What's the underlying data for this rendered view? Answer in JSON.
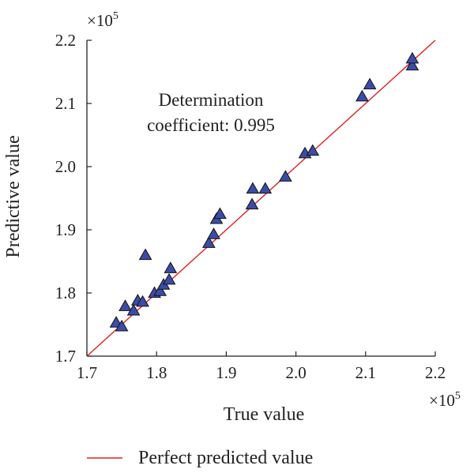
{
  "chart_data": {
    "type": "scatter",
    "xlabel": "True value",
    "ylabel": "Predictive value",
    "xlim": [
      1.7,
      2.2
    ],
    "ylim": [
      1.7,
      2.2
    ],
    "x_ticks": [
      "1.7",
      "1.8",
      "1.9",
      "2.0",
      "2.1",
      "2.2"
    ],
    "y_ticks": [
      "1.7",
      "1.8",
      "1.9",
      "2.0",
      "2.1",
      "2.2"
    ],
    "x_multiplier": {
      "base": "×10",
      "exp": "5"
    },
    "y_multiplier": {
      "base": "×10",
      "exp": "5"
    },
    "annotation": {
      "line1": "Determination",
      "line2": "coefficient: 0.995"
    },
    "legend": {
      "label": "Perfect predicted value",
      "position": "bottom"
    },
    "grid": false,
    "line_color": "#e02020",
    "marker_color": "#3b4ca8",
    "reference_line": {
      "name": "Perfect predicted value",
      "x": [
        1.7,
        2.2
      ],
      "y": [
        1.7,
        2.2
      ]
    },
    "points": [
      {
        "x": 1.742,
        "y": 1.753
      },
      {
        "x": 1.75,
        "y": 1.747
      },
      {
        "x": 1.755,
        "y": 1.779
      },
      {
        "x": 1.767,
        "y": 1.772
      },
      {
        "x": 1.773,
        "y": 1.788
      },
      {
        "x": 1.78,
        "y": 1.786
      },
      {
        "x": 1.784,
        "y": 1.86
      },
      {
        "x": 1.797,
        "y": 1.8
      },
      {
        "x": 1.805,
        "y": 1.803
      },
      {
        "x": 1.81,
        "y": 1.813
      },
      {
        "x": 1.818,
        "y": 1.821
      },
      {
        "x": 1.82,
        "y": 1.839
      },
      {
        "x": 1.875,
        "y": 1.879
      },
      {
        "x": 1.882,
        "y": 1.893
      },
      {
        "x": 1.886,
        "y": 1.917
      },
      {
        "x": 1.891,
        "y": 1.925
      },
      {
        "x": 1.937,
        "y": 1.94
      },
      {
        "x": 1.938,
        "y": 1.965
      },
      {
        "x": 1.956,
        "y": 1.965
      },
      {
        "x": 1.985,
        "y": 1.984
      },
      {
        "x": 2.013,
        "y": 2.021
      },
      {
        "x": 2.024,
        "y": 2.025
      },
      {
        "x": 2.095,
        "y": 2.111
      },
      {
        "x": 2.106,
        "y": 2.13
      },
      {
        "x": 2.167,
        "y": 2.16
      },
      {
        "x": 2.167,
        "y": 2.171
      }
    ]
  }
}
